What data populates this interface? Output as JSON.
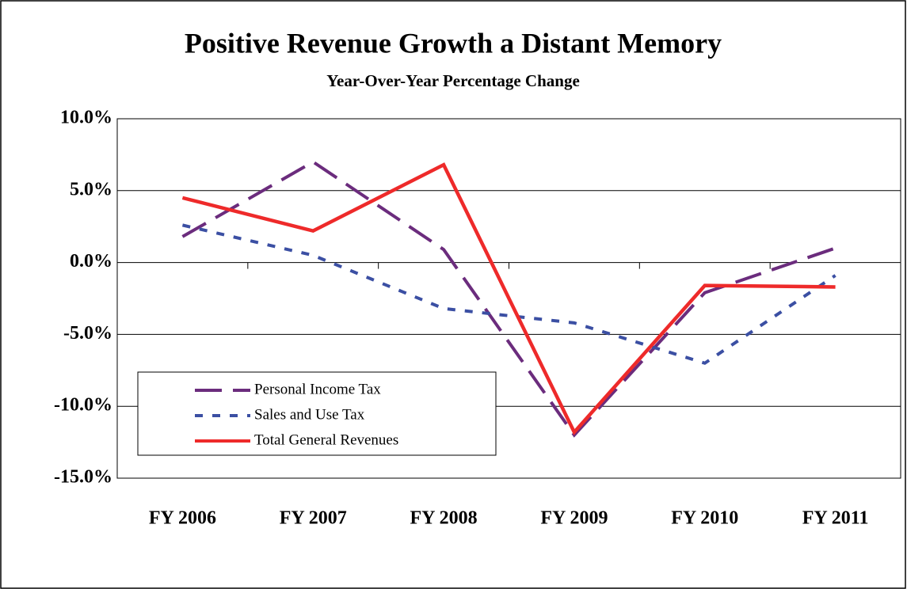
{
  "chart_data": {
    "type": "line",
    "title": "Positive Revenue Growth a Distant Memory",
    "subtitle": "Year-Over-Year Percentage Change",
    "categories": [
      "FY 2006",
      "FY 2007",
      "FY 2008",
      "FY 2009",
      "FY 2010",
      "FY 2011"
    ],
    "series": [
      {
        "name": "Personal Income Tax",
        "color": "#6b2c7d",
        "dash": "long",
        "values": [
          1.8,
          7.0,
          0.9,
          -12.0,
          -2.1,
          1.0
        ]
      },
      {
        "name": "Sales and Use Tax",
        "color": "#3b4fa3",
        "dash": "short",
        "values": [
          2.6,
          0.5,
          -3.2,
          -4.2,
          -7.0,
          -0.9
        ]
      },
      {
        "name": "Total General Revenues",
        "color": "#ee2a2a",
        "dash": "solid",
        "values": [
          4.5,
          2.2,
          6.8,
          -11.8,
          -1.6,
          -1.7
        ]
      }
    ],
    "ylim": [
      -15,
      10
    ],
    "yticks": [
      {
        "value": -15,
        "label": "-15.0%"
      },
      {
        "value": -10,
        "label": "-10.0%"
      },
      {
        "value": -5,
        "label": "-5.0%"
      },
      {
        "value": 0,
        "label": "0.0%"
      },
      {
        "value": 5,
        "label": "5.0%"
      },
      {
        "value": 10,
        "label": "10.0%"
      }
    ],
    "grid": true,
    "legend": "lower left"
  }
}
